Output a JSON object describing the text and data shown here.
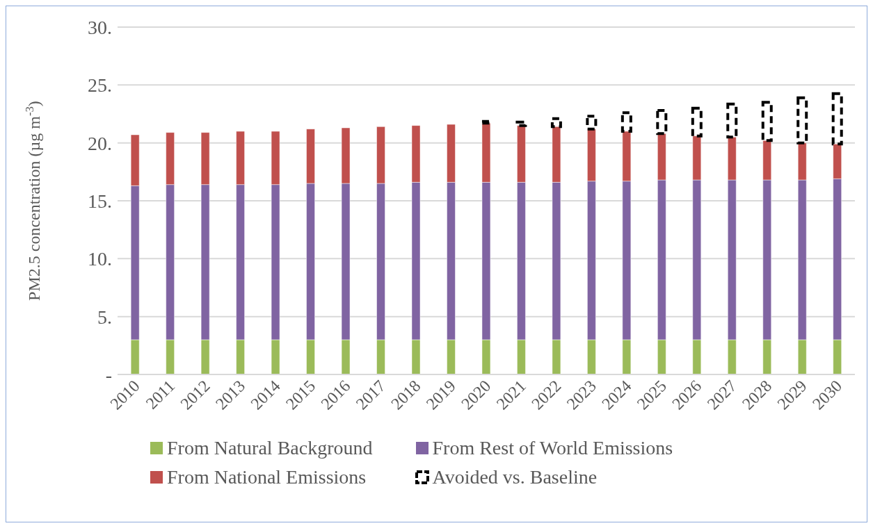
{
  "chart_data": {
    "type": "bar",
    "stacked": true,
    "ylabel": "PM2.5 concentration (µg m$^{-3}$)",
    "categories": [
      "2010",
      "2011",
      "2012",
      "2013",
      "2014",
      "2015",
      "2016",
      "2017",
      "2018",
      "2019",
      "2020",
      "2021",
      "2022",
      "2023",
      "2024",
      "2025",
      "2026",
      "2027",
      "2028",
      "2029",
      "2030"
    ],
    "series": [
      {
        "name": "From Natural Background",
        "color": "#9bbb59",
        "values": [
          3.0,
          3.0,
          3.0,
          3.0,
          3.0,
          3.0,
          3.0,
          3.0,
          3.0,
          3.0,
          3.0,
          3.0,
          3.0,
          3.0,
          3.0,
          3.0,
          3.0,
          3.0,
          3.0,
          3.0,
          3.0
        ]
      },
      {
        "name": "From Rest of World Emissions",
        "color": "#8064a2",
        "values": [
          13.3,
          13.4,
          13.4,
          13.4,
          13.4,
          13.5,
          13.5,
          13.5,
          13.6,
          13.6,
          13.6,
          13.6,
          13.6,
          13.7,
          13.7,
          13.8,
          13.8,
          13.8,
          13.8,
          13.8,
          13.9
        ]
      },
      {
        "name": "From National Emissions",
        "color": "#c0504d",
        "values": [
          4.4,
          4.5,
          4.5,
          4.6,
          4.6,
          4.7,
          4.8,
          4.9,
          4.9,
          5.0,
          5.1,
          4.9,
          4.8,
          4.5,
          4.3,
          4.0,
          3.8,
          3.7,
          3.4,
          3.2,
          3.0
        ]
      },
      {
        "name": "Avoided vs. Baseline",
        "color": "#000000",
        "line_style": "dashed",
        "values": [
          null,
          null,
          null,
          null,
          null,
          null,
          null,
          null,
          null,
          null,
          0.15,
          0.3,
          0.7,
          1.1,
          1.6,
          2.0,
          2.4,
          2.85,
          3.3,
          3.9,
          4.35
        ]
      }
    ],
    "ylim": [
      0,
      30
    ],
    "yticks": [
      {
        "value": 0,
        "label": "-"
      },
      {
        "value": 5,
        "label": "5."
      },
      {
        "value": 10,
        "label": "10."
      },
      {
        "value": 15,
        "label": "15."
      },
      {
        "value": 20,
        "label": "20."
      },
      {
        "value": 25,
        "label": "25."
      },
      {
        "value": 30,
        "label": "30."
      }
    ],
    "grid": "y",
    "legend": "bottom"
  }
}
